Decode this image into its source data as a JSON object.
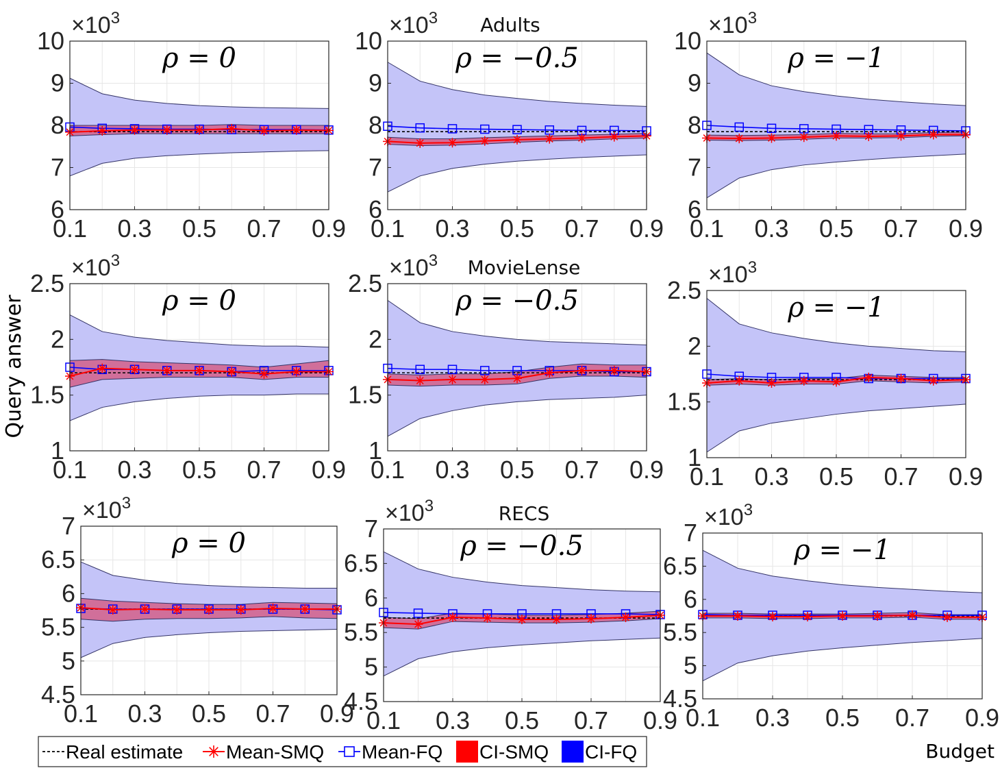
{
  "labels": {
    "ylabel": "Query answer",
    "xlabel": "Budget",
    "rho_prefix": "ρ = "
  },
  "legend": {
    "entries": [
      {
        "key": "real",
        "label": "Real estimate"
      },
      {
        "key": "smq",
        "label": "Mean-SMQ"
      },
      {
        "key": "fq",
        "label": "Mean-FQ"
      },
      {
        "key": "cismq",
        "label": "CI-SMQ"
      },
      {
        "key": "cifq",
        "label": "CI-FQ"
      }
    ]
  },
  "colors": {
    "smq": "#ff0000",
    "fq": "#0000ff",
    "ci_smq_fill": "#d4608a",
    "ci_fq_fill": "#c4c4f8",
    "real": "#000000",
    "border": "#262626"
  },
  "chart_data": [
    {
      "type": "line",
      "row": 0,
      "col": 0,
      "row_title": "",
      "rho": "0",
      "multiplier": "×10^3",
      "x": [
        0.1,
        0.2,
        0.3,
        0.4,
        0.5,
        0.6,
        0.7,
        0.8,
        0.9
      ],
      "xticks": [
        "0.1",
        "0.3",
        "0.5",
        "0.7",
        "0.9"
      ],
      "ylim": [
        6,
        10
      ],
      "yticks": [
        "6",
        "7",
        "8",
        "9",
        "10"
      ],
      "real": 7.85,
      "mean_smq": [
        7.84,
        7.87,
        7.89,
        7.89,
        7.89,
        7.92,
        7.87,
        7.89,
        7.88
      ],
      "mean_fq": [
        7.96,
        7.93,
        7.92,
        7.91,
        7.91,
        7.9,
        7.9,
        7.9,
        7.89
      ],
      "ci_smq_lower": [
        7.75,
        7.78,
        7.8,
        7.8,
        7.8,
        7.8,
        7.8,
        7.8,
        7.8
      ],
      "ci_smq_upper": [
        8.0,
        8.0,
        8.0,
        8.0,
        8.0,
        8.02,
        8.0,
        8.0,
        8.0
      ],
      "ci_fq_lower": [
        6.8,
        7.1,
        7.22,
        7.28,
        7.32,
        7.35,
        7.37,
        7.39,
        7.4
      ],
      "ci_fq_upper": [
        9.12,
        8.75,
        8.6,
        8.52,
        8.47,
        8.44,
        8.42,
        8.41,
        8.4
      ]
    },
    {
      "type": "line",
      "row": 0,
      "col": 1,
      "row_title": "Adults",
      "rho": "−0.5",
      "multiplier": "×10^3",
      "x": [
        0.1,
        0.2,
        0.3,
        0.4,
        0.5,
        0.6,
        0.7,
        0.8,
        0.9
      ],
      "xticks": [
        "0.1",
        "0.3",
        "0.5",
        "0.7",
        "0.9"
      ],
      "ylim": [
        6,
        10
      ],
      "yticks": [
        "6",
        "7",
        "8",
        "9",
        "10"
      ],
      "real": 7.85,
      "mean_smq": [
        7.62,
        7.58,
        7.59,
        7.63,
        7.66,
        7.68,
        7.7,
        7.73,
        7.75
      ],
      "mean_fq": [
        7.98,
        7.94,
        7.92,
        7.91,
        7.9,
        7.89,
        7.88,
        7.88,
        7.87
      ],
      "ci_smq_lower": [
        7.55,
        7.52,
        7.53,
        7.56,
        7.6,
        7.63,
        7.65,
        7.68,
        7.7
      ],
      "ci_smq_upper": [
        7.72,
        7.68,
        7.68,
        7.71,
        7.73,
        7.75,
        7.77,
        7.79,
        7.81
      ],
      "ci_fq_lower": [
        6.42,
        6.8,
        6.98,
        7.08,
        7.15,
        7.2,
        7.24,
        7.27,
        7.3
      ],
      "ci_fq_upper": [
        9.5,
        9.05,
        8.85,
        8.72,
        8.64,
        8.57,
        8.52,
        8.48,
        8.45
      ]
    },
    {
      "type": "line",
      "row": 0,
      "col": 2,
      "row_title": "",
      "rho": "−1",
      "multiplier": "×10^3",
      "x": [
        0.1,
        0.2,
        0.3,
        0.4,
        0.5,
        0.6,
        0.7,
        0.8,
        0.9
      ],
      "xticks": [
        "0.1",
        "0.3",
        "0.5",
        "0.7",
        "0.9"
      ],
      "ylim": [
        6,
        10
      ],
      "yticks": [
        "6",
        "7",
        "8",
        "9",
        "10"
      ],
      "real": 7.85,
      "mean_smq": [
        7.7,
        7.69,
        7.7,
        7.72,
        7.75,
        7.74,
        7.75,
        7.78,
        7.78
      ],
      "mean_fq": [
        8.0,
        7.96,
        7.93,
        7.92,
        7.91,
        7.9,
        7.89,
        7.88,
        7.87
      ],
      "ci_smq_lower": [
        7.65,
        7.64,
        7.65,
        7.67,
        7.7,
        7.7,
        7.71,
        7.74,
        7.75
      ],
      "ci_smq_upper": [
        7.77,
        7.76,
        7.77,
        7.78,
        7.81,
        7.8,
        7.8,
        7.83,
        7.84
      ],
      "ci_fq_lower": [
        6.28,
        6.75,
        6.95,
        7.06,
        7.13,
        7.19,
        7.24,
        7.28,
        7.32
      ],
      "ci_fq_upper": [
        9.72,
        9.2,
        8.94,
        8.8,
        8.7,
        8.62,
        8.56,
        8.51,
        8.47
      ]
    },
    {
      "type": "line",
      "row": 1,
      "col": 0,
      "row_title": "",
      "rho": "0",
      "multiplier": "×10^3",
      "x": [
        0.1,
        0.2,
        0.3,
        0.4,
        0.5,
        0.6,
        0.7,
        0.8,
        0.9
      ],
      "xticks": [
        "0.1",
        "0.3",
        "0.5",
        "0.7",
        "0.9"
      ],
      "ylim": [
        1,
        2.5
      ],
      "yticks": [
        "1",
        "1.5",
        "2",
        "2.5"
      ],
      "real": 1.7,
      "mean_smq": [
        1.67,
        1.74,
        1.73,
        1.72,
        1.72,
        1.71,
        1.69,
        1.71,
        1.71
      ],
      "mean_fq": [
        1.75,
        1.73,
        1.73,
        1.72,
        1.72,
        1.71,
        1.72,
        1.72,
        1.72
      ],
      "ci_smq_lower": [
        1.57,
        1.64,
        1.65,
        1.66,
        1.66,
        1.66,
        1.64,
        1.66,
        1.66
      ],
      "ci_smq_upper": [
        1.81,
        1.82,
        1.8,
        1.79,
        1.78,
        1.77,
        1.75,
        1.78,
        1.81
      ],
      "ci_fq_lower": [
        1.27,
        1.39,
        1.44,
        1.47,
        1.49,
        1.5,
        1.5,
        1.51,
        1.51
      ],
      "ci_fq_upper": [
        2.22,
        2.07,
        2.02,
        1.99,
        1.97,
        1.95,
        1.94,
        1.94,
        1.93
      ]
    },
    {
      "type": "line",
      "row": 1,
      "col": 1,
      "row_title": "MovieLense",
      "rho": "−0.5",
      "multiplier": "×10^3",
      "x": [
        0.1,
        0.2,
        0.3,
        0.4,
        0.5,
        0.6,
        0.7,
        0.8,
        0.9
      ],
      "xticks": [
        "0.1",
        "0.3",
        "0.5",
        "0.7",
        "0.9"
      ],
      "ylim": [
        1,
        2.5
      ],
      "yticks": [
        "1",
        "1.5",
        "2",
        "2.5"
      ],
      "real": 1.7,
      "mean_smq": [
        1.64,
        1.63,
        1.64,
        1.64,
        1.65,
        1.7,
        1.72,
        1.72,
        1.71
      ],
      "mean_fq": [
        1.74,
        1.73,
        1.73,
        1.72,
        1.72,
        1.72,
        1.72,
        1.71,
        1.71
      ],
      "ci_smq_lower": [
        1.59,
        1.58,
        1.59,
        1.59,
        1.6,
        1.65,
        1.67,
        1.67,
        1.66
      ],
      "ci_smq_upper": [
        1.69,
        1.68,
        1.69,
        1.69,
        1.71,
        1.75,
        1.78,
        1.77,
        1.77
      ],
      "ci_fq_lower": [
        1.13,
        1.29,
        1.36,
        1.41,
        1.44,
        1.46,
        1.47,
        1.48,
        1.5
      ],
      "ci_fq_upper": [
        2.35,
        2.15,
        2.07,
        2.03,
        2.0,
        1.98,
        1.97,
        1.96,
        1.95
      ]
    },
    {
      "type": "line",
      "row": 1,
      "col": 2,
      "row_title": "",
      "rho": "−1",
      "multiplier": "×10^3",
      "x": [
        0.1,
        0.2,
        0.3,
        0.4,
        0.5,
        0.6,
        0.7,
        0.8,
        0.9
      ],
      "xticks": [
        "0.1",
        "0.3",
        "0.5",
        "0.7",
        "0.9"
      ],
      "ylim": [
        1,
        2.5
      ],
      "yticks": [
        "1",
        "1.5",
        "2",
        "2.5"
      ],
      "real": 1.7,
      "mean_smq": [
        1.67,
        1.69,
        1.67,
        1.69,
        1.68,
        1.72,
        1.71,
        1.69,
        1.7
      ],
      "mean_fq": [
        1.75,
        1.73,
        1.72,
        1.72,
        1.72,
        1.71,
        1.71,
        1.71,
        1.71
      ],
      "ci_smq_lower": [
        1.65,
        1.66,
        1.65,
        1.66,
        1.66,
        1.69,
        1.68,
        1.67,
        1.68
      ],
      "ci_smq_upper": [
        1.7,
        1.71,
        1.7,
        1.71,
        1.71,
        1.74,
        1.73,
        1.72,
        1.72
      ],
      "ci_fq_lower": [
        1.05,
        1.24,
        1.31,
        1.35,
        1.39,
        1.42,
        1.44,
        1.46,
        1.48
      ],
      "ci_fq_upper": [
        2.43,
        2.2,
        2.12,
        2.07,
        2.03,
        2.0,
        1.98,
        1.96,
        1.95
      ]
    },
    {
      "type": "line",
      "row": 2,
      "col": 0,
      "row_title": "",
      "rho": "0",
      "multiplier": "×10^3",
      "x": [
        0.1,
        0.2,
        0.3,
        0.4,
        0.5,
        0.6,
        0.7,
        0.8,
        0.9
      ],
      "xticks": [
        "0.1",
        "0.3",
        "0.5",
        "0.7",
        "0.9"
      ],
      "ylim": [
        4.5,
        7
      ],
      "yticks": [
        "4.5",
        "5",
        "5.5",
        "6",
        "6.5",
        "7"
      ],
      "real": 5.77,
      "mean_smq": [
        5.79,
        5.76,
        5.77,
        5.76,
        5.76,
        5.76,
        5.78,
        5.77,
        5.77
      ],
      "mean_fq": [
        5.78,
        5.77,
        5.77,
        5.77,
        5.77,
        5.77,
        5.77,
        5.77,
        5.76
      ],
      "ci_smq_lower": [
        5.62,
        5.59,
        5.62,
        5.63,
        5.63,
        5.64,
        5.66,
        5.64,
        5.63
      ],
      "ci_smq_upper": [
        5.93,
        5.89,
        5.87,
        5.85,
        5.84,
        5.84,
        5.87,
        5.86,
        5.85
      ],
      "ci_fq_lower": [
        5.05,
        5.26,
        5.35,
        5.39,
        5.42,
        5.44,
        5.45,
        5.46,
        5.47
      ],
      "ci_fq_upper": [
        6.47,
        6.27,
        6.2,
        6.15,
        6.12,
        6.1,
        6.09,
        6.08,
        6.08
      ]
    },
    {
      "type": "line",
      "row": 2,
      "col": 1,
      "row_title": "RECS",
      "rho": "−0.5",
      "multiplier": "×10^3",
      "x": [
        0.1,
        0.2,
        0.3,
        0.4,
        0.5,
        0.6,
        0.7,
        0.8,
        0.9
      ],
      "xticks": [
        "0.1",
        "0.3",
        "0.5",
        "0.7",
        "0.9"
      ],
      "ylim": [
        4.5,
        7
      ],
      "yticks": [
        "4.5",
        "5",
        "5.5",
        "6",
        "6.5",
        "7"
      ],
      "real": 5.71,
      "mean_smq": [
        5.64,
        5.62,
        5.72,
        5.71,
        5.69,
        5.69,
        5.7,
        5.72,
        5.75
      ],
      "mean_fq": [
        5.79,
        5.78,
        5.77,
        5.77,
        5.77,
        5.77,
        5.77,
        5.77,
        5.76
      ],
      "ci_smq_lower": [
        5.57,
        5.55,
        5.66,
        5.65,
        5.64,
        5.64,
        5.65,
        5.67,
        5.7
      ],
      "ci_smq_upper": [
        5.72,
        5.7,
        5.78,
        5.77,
        5.75,
        5.75,
        5.76,
        5.78,
        5.81
      ],
      "ci_fq_lower": [
        4.87,
        5.12,
        5.22,
        5.28,
        5.32,
        5.35,
        5.38,
        5.4,
        5.42
      ],
      "ci_fq_upper": [
        6.67,
        6.42,
        6.3,
        6.23,
        6.18,
        6.15,
        6.12,
        6.1,
        6.09
      ]
    },
    {
      "type": "line",
      "row": 2,
      "col": 2,
      "row_title": "",
      "rho": "−1",
      "multiplier": "×10^3",
      "x": [
        0.1,
        0.2,
        0.3,
        0.4,
        0.5,
        0.6,
        0.7,
        0.8,
        0.9
      ],
      "xticks": [
        "0.1",
        "0.3",
        "0.5",
        "0.7",
        "0.9"
      ],
      "ylim": [
        4.5,
        7
      ],
      "yticks": [
        "4.5",
        "5",
        "5.5",
        "6",
        "6.5",
        "7"
      ],
      "real": 5.75,
      "mean_smq": [
        5.75,
        5.75,
        5.74,
        5.74,
        5.75,
        5.75,
        5.76,
        5.73,
        5.73
      ],
      "mean_fq": [
        5.77,
        5.76,
        5.76,
        5.76,
        5.76,
        5.76,
        5.76,
        5.76,
        5.76
      ],
      "ci_smq_lower": [
        5.72,
        5.72,
        5.71,
        5.71,
        5.72,
        5.72,
        5.73,
        5.7,
        5.7
      ],
      "ci_smq_upper": [
        5.79,
        5.79,
        5.78,
        5.78,
        5.78,
        5.79,
        5.8,
        5.77,
        5.77
      ],
      "ci_fq_lower": [
        4.77,
        5.04,
        5.15,
        5.22,
        5.27,
        5.31,
        5.35,
        5.38,
        5.41
      ],
      "ci_fq_upper": [
        6.74,
        6.47,
        6.35,
        6.28,
        6.22,
        6.18,
        6.15,
        6.12,
        6.1
      ]
    }
  ]
}
